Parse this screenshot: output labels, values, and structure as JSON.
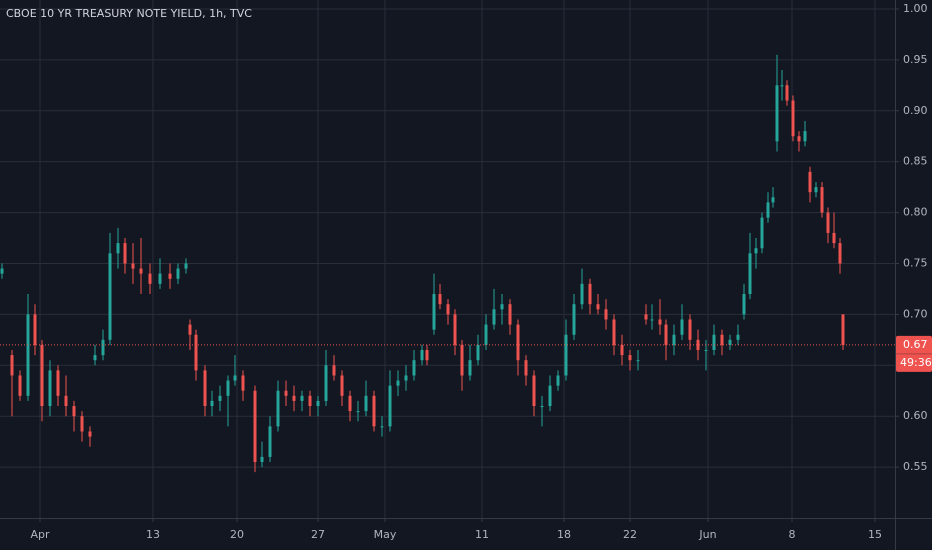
{
  "chart_data": {
    "type": "candlestick",
    "title": "CBOE 10 YR TREASURY NOTE YIELD, 1h, TVC",
    "up_color": "#26a69a",
    "down_color": "#ef5350",
    "grid": true,
    "xlim": [
      0,
      223.75
    ],
    "ylim": [
      0.5,
      1.0088
    ],
    "xticks": [
      {
        "value": 10,
        "label": "Apr"
      },
      {
        "value": 38.25,
        "label": "13"
      },
      {
        "value": 59.25,
        "label": "20"
      },
      {
        "value": 79.5,
        "label": "27"
      },
      {
        "value": 96.25,
        "label": "May"
      },
      {
        "value": 120.5,
        "label": "11"
      },
      {
        "value": 141,
        "label": "18"
      },
      {
        "value": 157.5,
        "label": "22"
      },
      {
        "value": 177,
        "label": "Jun"
      },
      {
        "value": 198,
        "label": "8"
      },
      {
        "value": 218.75,
        "label": "15"
      }
    ],
    "yticks": [
      {
        "value": 0.55,
        "label": "0.55"
      },
      {
        "value": 0.6,
        "label": "0.60"
      },
      {
        "value": 0.65,
        "label": "0.65"
      },
      {
        "value": 0.7,
        "label": "0.70"
      },
      {
        "value": 0.75,
        "label": "0.75"
      },
      {
        "value": 0.8,
        "label": "0.80"
      },
      {
        "value": 0.85,
        "label": "0.85"
      },
      {
        "value": 0.9,
        "label": "0.90"
      },
      {
        "value": 0.95,
        "label": "0.95"
      },
      {
        "value": 1.0,
        "label": "1.00"
      }
    ],
    "last_price": {
      "value": 0.67,
      "label": "0.67"
    },
    "countdown": "49:36",
    "x": [
      0.5,
      3,
      5,
      7,
      8.75,
      10.5,
      12.5,
      14.5,
      16.5,
      18.5,
      20.5,
      22.5,
      23.75,
      25.75,
      27.5,
      29.5,
      31.25,
      33.25,
      35.25,
      37.5,
      40,
      42.5,
      44.5,
      46.5,
      47.5,
      49,
      51.25,
      53,
      55,
      57,
      58.75,
      60.75,
      63.75,
      65.5,
      67.5,
      69.5,
      71.5,
      73.5,
      75.5,
      77.5,
      79.5,
      81.5,
      83.5,
      85.5,
      87.5,
      89.5,
      91.5,
      93.5,
      95.5,
      97.5,
      99.5,
      101.5,
      103.5,
      105.5,
      106.75,
      108.5,
      110,
      112,
      113.75,
      115.5,
      117.5,
      119.5,
      121.5,
      123.5,
      125.5,
      127.5,
      129.5,
      131.5,
      133.5,
      135.5,
      137.5,
      139.5,
      141.5,
      143.5,
      145.5,
      147.5,
      149.5,
      151.5,
      153.5,
      155.5,
      157.5,
      159.5,
      161.5,
      163,
      165,
      166.5,
      168.5,
      170.5,
      172.5,
      174.5,
      176.5,
      178.5,
      180.5,
      182.5,
      184.5,
      186,
      187.5,
      189,
      190.5,
      192,
      193.25,
      194.25,
      195.5,
      196.75,
      198.25,
      199.75,
      201.25,
      202.5,
      204,
      205.5,
      207,
      208.5,
      210,
      210.75
    ],
    "ohlc": [
      [
        0.74,
        0.75,
        0.735,
        0.745
      ],
      [
        0.66,
        0.665,
        0.6,
        0.64
      ],
      [
        0.64,
        0.645,
        0.615,
        0.62
      ],
      [
        0.62,
        0.72,
        0.615,
        0.7
      ],
      [
        0.7,
        0.71,
        0.66,
        0.67
      ],
      [
        0.67,
        0.675,
        0.595,
        0.61
      ],
      [
        0.61,
        0.655,
        0.6,
        0.645
      ],
      [
        0.645,
        0.65,
        0.61,
        0.62
      ],
      [
        0.62,
        0.64,
        0.6,
        0.61
      ],
      [
        0.61,
        0.615,
        0.585,
        0.6
      ],
      [
        0.6,
        0.605,
        0.575,
        0.585
      ],
      [
        0.585,
        0.59,
        0.57,
        0.58
      ],
      [
        0.655,
        0.67,
        0.65,
        0.66
      ],
      [
        0.66,
        0.685,
        0.655,
        0.675
      ],
      [
        0.675,
        0.78,
        0.67,
        0.76
      ],
      [
        0.76,
        0.785,
        0.745,
        0.77
      ],
      [
        0.77,
        0.775,
        0.74,
        0.75
      ],
      [
        0.75,
        0.77,
        0.73,
        0.745
      ],
      [
        0.745,
        0.775,
        0.72,
        0.74
      ],
      [
        0.74,
        0.75,
        0.72,
        0.73
      ],
      [
        0.73,
        0.755,
        0.725,
        0.74
      ],
      [
        0.74,
        0.75,
        0.725,
        0.735
      ],
      [
        0.735,
        0.75,
        0.73,
        0.745
      ],
      [
        0.745,
        0.755,
        0.74,
        0.75
      ],
      [
        0.69,
        0.695,
        0.665,
        0.68
      ],
      [
        0.68,
        0.685,
        0.635,
        0.645
      ],
      [
        0.645,
        0.65,
        0.6,
        0.61
      ],
      [
        0.61,
        0.625,
        0.6,
        0.615
      ],
      [
        0.615,
        0.63,
        0.605,
        0.62
      ],
      [
        0.62,
        0.64,
        0.59,
        0.635
      ],
      [
        0.635,
        0.66,
        0.63,
        0.64
      ],
      [
        0.64,
        0.645,
        0.615,
        0.625
      ],
      [
        0.625,
        0.63,
        0.545,
        0.555
      ],
      [
        0.555,
        0.575,
        0.55,
        0.56
      ],
      [
        0.56,
        0.6,
        0.555,
        0.59
      ],
      [
        0.59,
        0.635,
        0.585,
        0.625
      ],
      [
        0.625,
        0.635,
        0.61,
        0.62
      ],
      [
        0.62,
        0.63,
        0.605,
        0.615
      ],
      [
        0.615,
        0.625,
        0.605,
        0.62
      ],
      [
        0.62,
        0.625,
        0.6,
        0.61
      ],
      [
        0.61,
        0.62,
        0.6,
        0.615
      ],
      [
        0.615,
        0.665,
        0.61,
        0.65
      ],
      [
        0.65,
        0.66,
        0.635,
        0.64
      ],
      [
        0.64,
        0.645,
        0.61,
        0.62
      ],
      [
        0.62,
        0.625,
        0.595,
        0.605
      ],
      [
        0.605,
        0.615,
        0.595,
        0.605
      ],
      [
        0.605,
        0.635,
        0.6,
        0.62
      ],
      [
        0.62,
        0.625,
        0.585,
        0.59
      ],
      [
        0.59,
        0.6,
        0.58,
        0.59
      ],
      [
        0.59,
        0.645,
        0.585,
        0.63
      ],
      [
        0.63,
        0.645,
        0.62,
        0.635
      ],
      [
        0.635,
        0.65,
        0.625,
        0.64
      ],
      [
        0.64,
        0.665,
        0.635,
        0.655
      ],
      [
        0.655,
        0.67,
        0.65,
        0.665
      ],
      [
        0.665,
        0.67,
        0.65,
        0.655
      ],
      [
        0.685,
        0.74,
        0.68,
        0.72
      ],
      [
        0.72,
        0.73,
        0.705,
        0.71
      ],
      [
        0.71,
        0.715,
        0.69,
        0.7
      ],
      [
        0.7,
        0.705,
        0.66,
        0.67
      ],
      [
        0.67,
        0.675,
        0.625,
        0.64
      ],
      [
        0.64,
        0.67,
        0.635,
        0.655
      ],
      [
        0.655,
        0.68,
        0.65,
        0.67
      ],
      [
        0.67,
        0.7,
        0.665,
        0.69
      ],
      [
        0.69,
        0.725,
        0.685,
        0.705
      ],
      [
        0.705,
        0.72,
        0.69,
        0.71
      ],
      [
        0.71,
        0.715,
        0.68,
        0.69
      ],
      [
        0.69,
        0.695,
        0.64,
        0.655
      ],
      [
        0.655,
        0.66,
        0.63,
        0.64
      ],
      [
        0.64,
        0.645,
        0.6,
        0.61
      ],
      [
        0.61,
        0.62,
        0.59,
        0.61
      ],
      [
        0.61,
        0.64,
        0.605,
        0.63
      ],
      [
        0.63,
        0.645,
        0.625,
        0.64
      ],
      [
        0.64,
        0.695,
        0.635,
        0.68
      ],
      [
        0.68,
        0.72,
        0.675,
        0.71
      ],
      [
        0.71,
        0.745,
        0.705,
        0.73
      ],
      [
        0.73,
        0.735,
        0.7,
        0.71
      ],
      [
        0.71,
        0.72,
        0.7,
        0.705
      ],
      [
        0.705,
        0.715,
        0.685,
        0.695
      ],
      [
        0.695,
        0.7,
        0.66,
        0.67
      ],
      [
        0.67,
        0.68,
        0.65,
        0.66
      ],
      [
        0.66,
        0.665,
        0.645,
        0.655
      ],
      [
        0.655,
        0.665,
        0.645,
        0.655
      ],
      [
        0.7,
        0.71,
        0.69,
        0.695
      ],
      [
        0.695,
        0.71,
        0.685,
        0.695
      ],
      [
        0.695,
        0.715,
        0.68,
        0.69
      ],
      [
        0.69,
        0.695,
        0.655,
        0.67
      ],
      [
        0.67,
        0.69,
        0.66,
        0.68
      ],
      [
        0.68,
        0.71,
        0.675,
        0.695
      ],
      [
        0.695,
        0.7,
        0.665,
        0.675
      ],
      [
        0.675,
        0.685,
        0.655,
        0.665
      ],
      [
        0.665,
        0.675,
        0.645,
        0.665
      ],
      [
        0.665,
        0.69,
        0.66,
        0.68
      ],
      [
        0.68,
        0.685,
        0.66,
        0.67
      ],
      [
        0.67,
        0.68,
        0.665,
        0.675
      ],
      [
        0.675,
        0.69,
        0.67,
        0.68
      ],
      [
        0.7,
        0.73,
        0.695,
        0.72
      ],
      [
        0.72,
        0.78,
        0.715,
        0.76
      ],
      [
        0.76,
        0.775,
        0.745,
        0.765
      ],
      [
        0.765,
        0.8,
        0.76,
        0.795
      ],
      [
        0.795,
        0.82,
        0.79,
        0.81
      ],
      [
        0.81,
        0.825,
        0.805,
        0.815
      ],
      [
        0.87,
        0.955,
        0.86,
        0.925
      ],
      [
        0.925,
        0.94,
        0.91,
        0.925
      ],
      [
        0.925,
        0.93,
        0.905,
        0.91
      ],
      [
        0.91,
        0.915,
        0.87,
        0.875
      ],
      [
        0.875,
        0.88,
        0.86,
        0.87
      ],
      [
        0.87,
        0.89,
        0.865,
        0.88
      ],
      [
        0.84,
        0.845,
        0.81,
        0.82
      ],
      [
        0.82,
        0.83,
        0.815,
        0.825
      ],
      [
        0.825,
        0.83,
        0.795,
        0.8
      ],
      [
        0.8,
        0.805,
        0.77,
        0.78
      ],
      [
        0.78,
        0.8,
        0.765,
        0.77
      ],
      [
        0.77,
        0.775,
        0.74,
        0.75
      ],
      [
        0.7,
        0.7,
        0.665,
        0.67
      ]
    ]
  }
}
